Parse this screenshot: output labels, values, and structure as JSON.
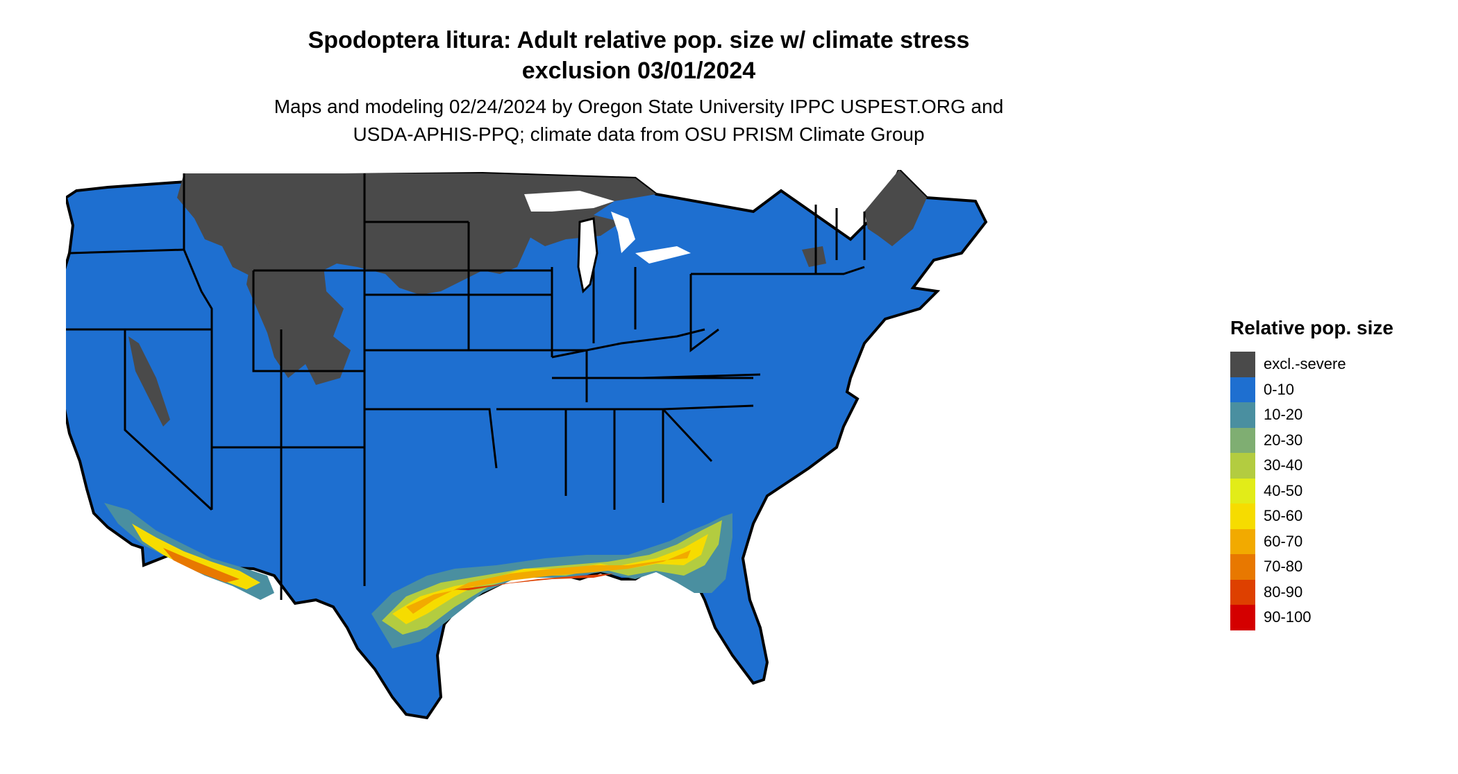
{
  "title": {
    "line1": "Spodoptera litura: Adult relative pop. size w/ climate stress",
    "line2": "exclusion 03/01/2024"
  },
  "subtitle": {
    "line1": "Maps and modeling 02/24/2024 by Oregon State University IPPC USPEST.ORG and",
    "line2": "USDA-APHIS-PPQ; climate data from OSU PRISM Climate Group"
  },
  "legend": {
    "title": "Relative pop. size",
    "items": [
      {
        "label": "excl.-severe",
        "color": "#4a4a4a"
      },
      {
        "label": "0-10",
        "color": "#1e6fd0"
      },
      {
        "label": "10-20",
        "color": "#4a8fa0"
      },
      {
        "label": "20-30",
        "color": "#7fae72"
      },
      {
        "label": "30-40",
        "color": "#b3cc40"
      },
      {
        "label": "40-50",
        "color": "#e2ec18"
      },
      {
        "label": "50-60",
        "color": "#f6dc00"
      },
      {
        "label": "60-70",
        "color": "#f2aa00"
      },
      {
        "label": "70-80",
        "color": "#e87800"
      },
      {
        "label": "80-90",
        "color": "#de4000"
      },
      {
        "label": "90-100",
        "color": "#d40000"
      }
    ]
  }
}
